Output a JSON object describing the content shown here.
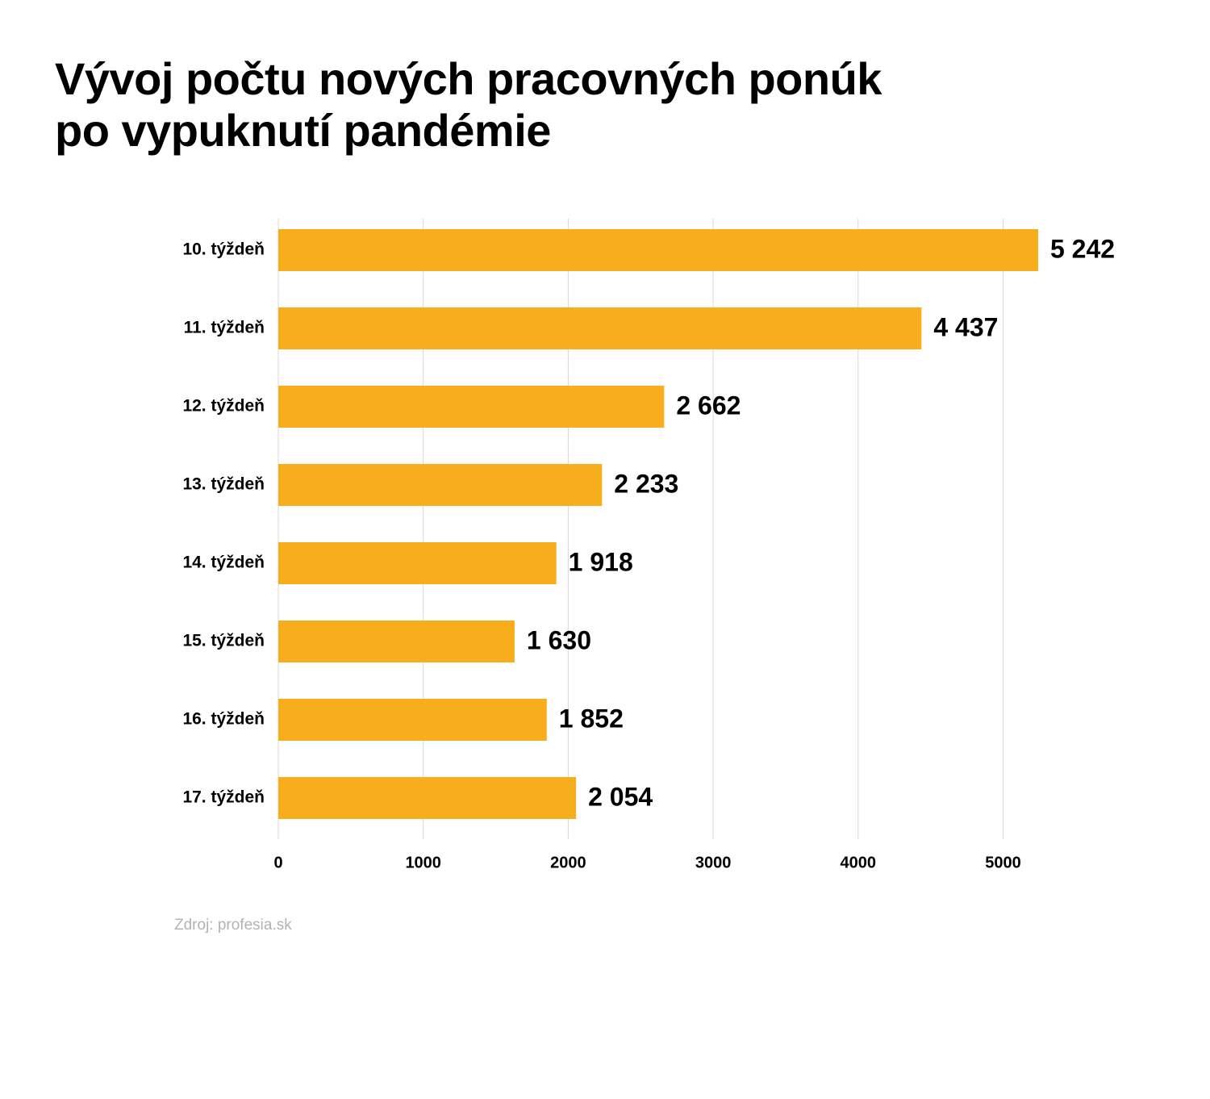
{
  "title": {
    "line1": "Vývoj počtu nových pracovných ponúk",
    "line2": "po vypuknutí pandémie"
  },
  "source": "Zdroj: profesia.sk",
  "colors": {
    "bar": "#F8AE1C",
    "grid": "#D9D9D9",
    "text": "#000000",
    "source": "#B3B3B3"
  },
  "chart_data": {
    "type": "bar",
    "orientation": "horizontal",
    "categories": [
      "10. týždeň",
      "11. týždeň",
      "12. týždeň",
      "13. týždeň",
      "14. týždeň",
      "15. týždeň",
      "16. týždeň",
      "17. týždeň"
    ],
    "values": [
      5242,
      4437,
      2662,
      2233,
      1918,
      1630,
      1852,
      2054
    ],
    "value_labels": [
      "5 242",
      "4 437",
      "2 662",
      "2 233",
      "1 918",
      "1 630",
      "1 852",
      "2 054"
    ],
    "xticks": [
      0,
      1000,
      2000,
      3000,
      4000,
      5000
    ],
    "xlim": [
      0,
      6000
    ],
    "grid": true,
    "legend": "none"
  }
}
